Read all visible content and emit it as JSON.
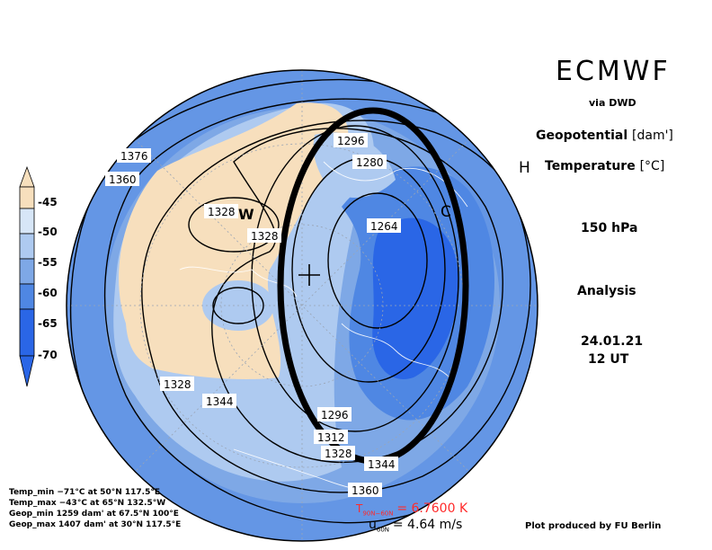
{
  "header": {
    "brand": "ECMWF",
    "via": "via DWD",
    "param1": "Geopotential",
    "param1_unit": "[dam']",
    "param2": "Temperature",
    "param2_unit": "[°C]",
    "level": "150 hPa",
    "run_type": "Analysis",
    "date": "24.01.21",
    "time": "12 UT"
  },
  "legend": {
    "labels": [
      "-45",
      "-50",
      "-55",
      "-60",
      "-65",
      "-70"
    ],
    "colors": [
      "#f7dfbd",
      "#d7e6f7",
      "#aecaf0",
      "#7ea8e6",
      "#4f87e3",
      "#2a66e6"
    ]
  },
  "stats": {
    "temp_min": "Temp_min −71°C at 50°N 117.5°E",
    "temp_max": "Temp_max −43°C at 65°N 132.5°W",
    "geop_min": "Geop_min 1259 dam' at 67.5°N 100°E",
    "geop_max": "Geop_max 1407 dam' at 30°N 117.5°E"
  },
  "footer": {
    "t_label": "T",
    "t_sub": "90N−60N",
    "t_value": "= 6.7600 K",
    "u_label": "u",
    "u_sub": "60N",
    "u_value": "= 4.64 m/s",
    "credit": "Plot produced by FU Berlin"
  },
  "map": {
    "contour_labels": [
      "1376",
      "1360",
      "1328",
      "1328",
      "1296",
      "1280",
      "1264",
      "1328",
      "1344",
      "1296",
      "1312",
      "1328",
      "1344",
      "1360"
    ],
    "markers": {
      "high": "H",
      "low": "C",
      "warm": "W"
    },
    "colors": {
      "warm": "#f7dfbd",
      "cold_core": "#2a66e6",
      "mid": "#7ea8e6",
      "light": "#aecaf0",
      "ellipse": "#000000"
    }
  }
}
